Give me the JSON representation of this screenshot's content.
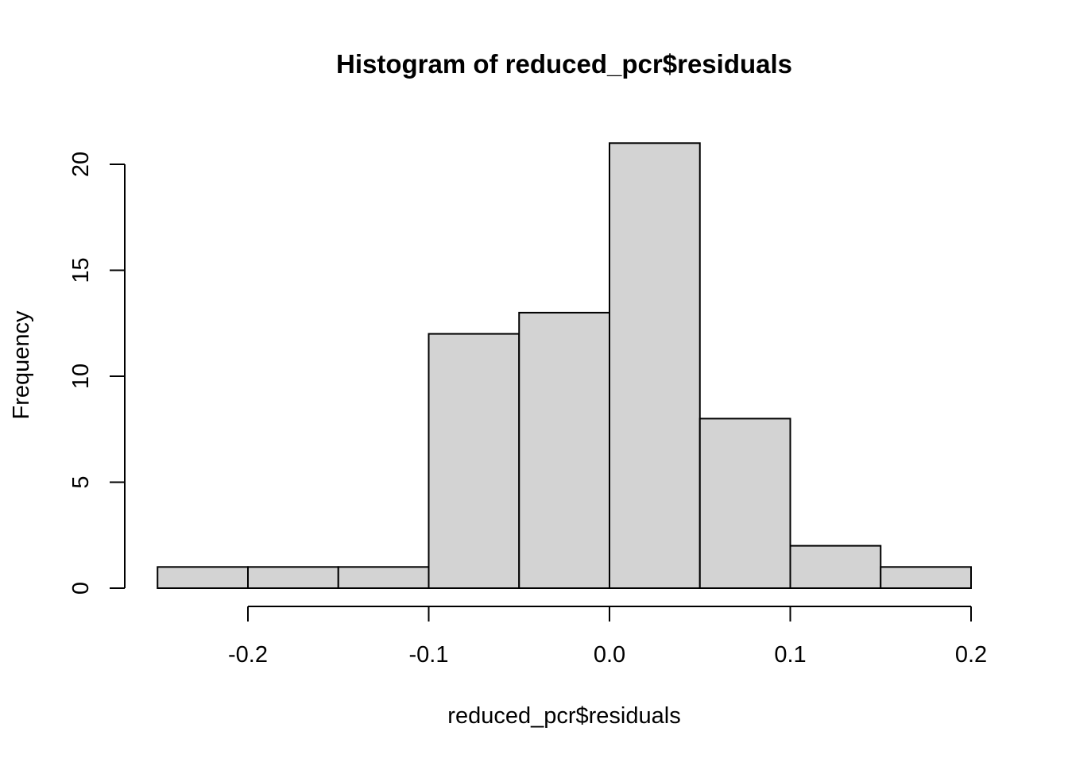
{
  "chart_data": {
    "type": "bar",
    "title": "Histogram of reduced_pcr$residuals",
    "xlabel": "reduced_pcr$residuals",
    "ylabel": "Frequency",
    "bins": [
      {
        "x0": -0.25,
        "x1": -0.2,
        "count": 1
      },
      {
        "x0": -0.2,
        "x1": -0.15,
        "count": 1
      },
      {
        "x0": -0.15,
        "x1": -0.1,
        "count": 1
      },
      {
        "x0": -0.1,
        "x1": -0.05,
        "count": 12
      },
      {
        "x0": -0.05,
        "x1": 0.0,
        "count": 13
      },
      {
        "x0": 0.0,
        "x1": 0.05,
        "count": 21
      },
      {
        "x0": 0.05,
        "x1": 0.1,
        "count": 8
      },
      {
        "x0": 0.1,
        "x1": 0.15,
        "count": 2
      },
      {
        "x0": 0.15,
        "x1": 0.2,
        "count": 1
      }
    ],
    "xlim": [
      -0.25,
      0.2
    ],
    "ylim": [
      0,
      21
    ],
    "x_ticks": [
      -0.2,
      -0.1,
      0.0,
      0.1,
      0.2
    ],
    "x_tick_labels": [
      "-0.2",
      "-0.1",
      "0.0",
      "0.1",
      "0.2"
    ],
    "y_ticks": [
      0,
      5,
      10,
      15,
      20
    ],
    "y_tick_labels": [
      "0",
      "5",
      "10",
      "15",
      "20"
    ],
    "bar_fill": "#d3d3d3",
    "bar_stroke": "#000000",
    "grid": false
  }
}
